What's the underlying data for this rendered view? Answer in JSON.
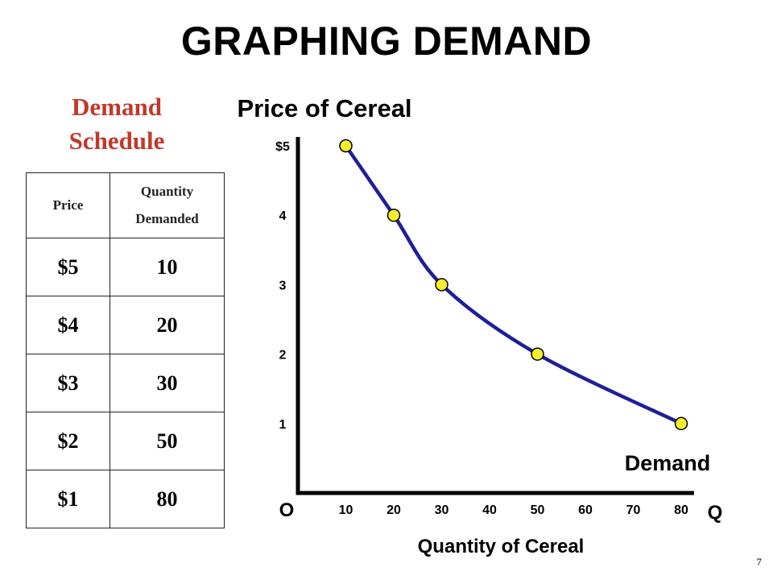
{
  "slide": {
    "title": "GRAPHING DEMAND",
    "page_number": "7"
  },
  "schedule": {
    "title_line1": "Demand",
    "title_line2": "Schedule",
    "title_color": "#c0392b",
    "header_price": "Price",
    "header_quantity_line1": "Quantity",
    "header_quantity_line2": "Demanded",
    "rows": [
      {
        "price": "$5",
        "quantity": "10"
      },
      {
        "price": "$4",
        "quantity": "20"
      },
      {
        "price": "$3",
        "quantity": "30"
      },
      {
        "price": "$2",
        "quantity": "50"
      },
      {
        "price": "$1",
        "quantity": "80"
      }
    ]
  },
  "chart_data": {
    "type": "line",
    "title": "Price of Cereal",
    "xlabel": "Quantity of Cereal",
    "x_axis_end_label": "Q",
    "origin_label": "O",
    "curve_label": "Demand",
    "x_ticks": [
      "10",
      "20",
      "30",
      "40",
      "50",
      "60",
      "70",
      "80"
    ],
    "y_ticks": [
      "1",
      "2",
      "3",
      "4",
      "$5"
    ],
    "xlim": [
      0,
      80
    ],
    "ylim": [
      0,
      5
    ],
    "grid": false,
    "curve_color": "#1f1f99",
    "point_color": "#f5ee2b",
    "series": [
      {
        "points": [
          {
            "x": 10,
            "y": 5
          },
          {
            "x": 20,
            "y": 4
          },
          {
            "x": 30,
            "y": 3
          },
          {
            "x": 50,
            "y": 2
          },
          {
            "x": 80,
            "y": 1
          }
        ]
      }
    ]
  }
}
